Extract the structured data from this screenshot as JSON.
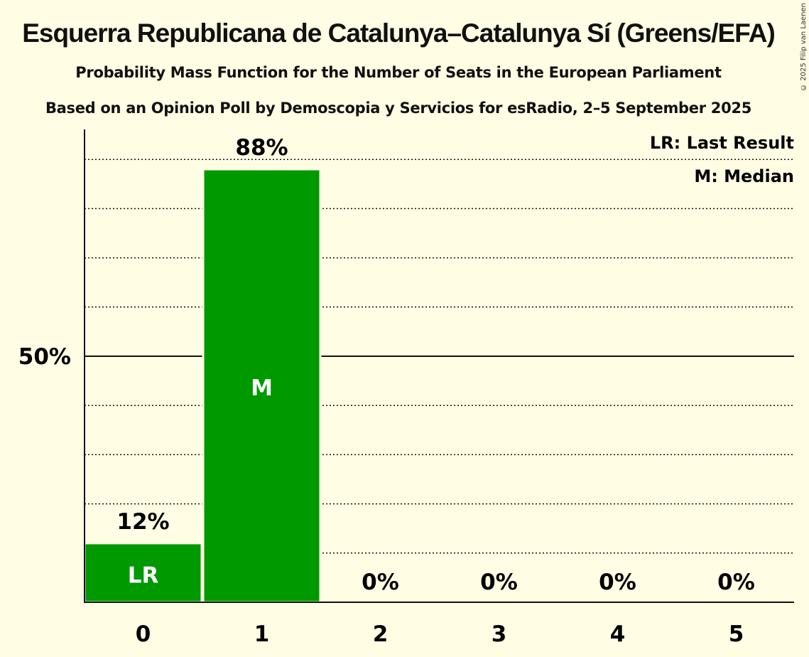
{
  "title": "Esquerra Republicana de Catalunya–Catalunya Sí (Greens/EFA)",
  "subtitle": "Probability Mass Function for the Number of Seats in the European Parliament",
  "subtitle2": "Based on an Opinion Poll by Demoscopia y Servicios for esRadio, 2–5 September 2025",
  "copyright": "© 2025 Filip van Laenen",
  "colors": {
    "bar": "#009900",
    "background": "#fffde3"
  },
  "chart_data": {
    "type": "bar",
    "categories": [
      "0",
      "1",
      "2",
      "3",
      "4",
      "5"
    ],
    "values": [
      12,
      88,
      0,
      0,
      0,
      0
    ],
    "value_labels": [
      "12%",
      "88%",
      "0%",
      "0%",
      "0%",
      "0%"
    ],
    "bar_markers": [
      "LR",
      "M",
      "",
      "",
      "",
      ""
    ],
    "ylim": [
      0,
      100
    ],
    "yticks": [
      {
        "value": 50,
        "label": "50%"
      }
    ],
    "grid_step": 10,
    "legend": [
      "LR: Last Result",
      "M: Median"
    ],
    "legend_position": "top-right"
  }
}
